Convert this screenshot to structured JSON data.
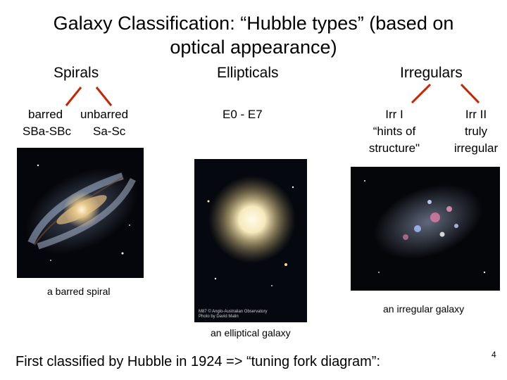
{
  "title": "Galaxy Classification: “Hubble types” (based on optical appearance)",
  "columns": {
    "spirals": {
      "heading": "Spirals",
      "sub_left": "barred",
      "sub_right": "unbarred",
      "range_left": "SBa-SBc",
      "range_right": "Sa-Sc",
      "caption": "a barred spiral"
    },
    "ellipticals": {
      "heading": "Ellipticals",
      "range": "E0  -  E7",
      "caption": "an elliptical galaxy",
      "credit_line1": "M87   © Anglo-Australian Observatory",
      "credit_line2": "Photo by David Malin"
    },
    "irregulars": {
      "heading": "Irregulars",
      "irr1_line1": "Irr I",
      "irr1_line2": "“hints of",
      "irr1_line3": "structure\"",
      "irr2_line1": "Irr II",
      "irr2_line2": "truly",
      "irr2_line3": "irregular",
      "caption": "an irregular galaxy"
    }
  },
  "footer": "First classified by Hubble in 1924  => “tuning fork diagram”:",
  "page_number": "4",
  "colors": {
    "connector": "#cc2200"
  }
}
